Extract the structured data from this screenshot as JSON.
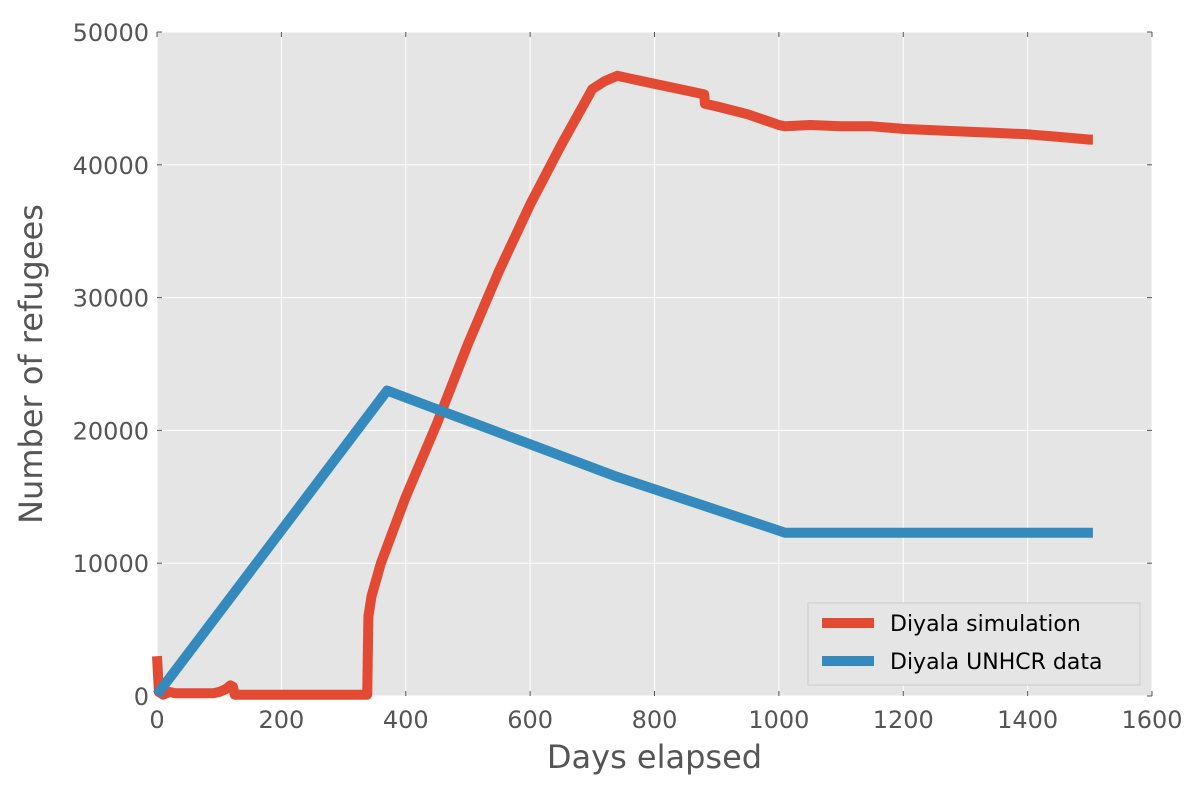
{
  "chart_data": {
    "type": "line",
    "title": "",
    "xlabel": "Days elapsed",
    "ylabel": "Number of refugees",
    "xlim": [
      0,
      1600
    ],
    "ylim": [
      0,
      50000
    ],
    "xticks": [
      0,
      200,
      400,
      600,
      800,
      1000,
      1200,
      1400,
      1600
    ],
    "yticks": [
      0,
      10000,
      20000,
      30000,
      40000,
      50000
    ],
    "grid": true,
    "legend_position": "lower-right",
    "series": [
      {
        "name": "Diyala simulation",
        "color": "#e24a33",
        "x": [
          0,
          3,
          10,
          20,
          30,
          40,
          60,
          90,
          100,
          110,
          118,
          122,
          125,
          200,
          300,
          338,
          340,
          345,
          360,
          380,
          400,
          450,
          500,
          550,
          600,
          650,
          700,
          720,
          740,
          760,
          800,
          850,
          880,
          881,
          900,
          950,
          1000,
          1010,
          1050,
          1100,
          1150,
          1200,
          1250,
          1300,
          1350,
          1400,
          1450,
          1500,
          1505
        ],
        "y": [
          3000,
          300,
          100,
          300,
          200,
          200,
          200,
          200,
          300,
          500,
          800,
          700,
          100,
          100,
          100,
          100,
          6000,
          7500,
          10000,
          12500,
          15000,
          20500,
          26500,
          32000,
          37000,
          41500,
          45700,
          46300,
          46700,
          46500,
          46100,
          45600,
          45300,
          44600,
          44400,
          43800,
          43000,
          42900,
          43000,
          42900,
          42900,
          42700,
          42600,
          42500,
          42400,
          42300,
          42100,
          41900,
          41900
        ]
      },
      {
        "name": "Diyala UNHCR data",
        "color": "#348abd",
        "x": [
          0,
          370,
          740,
          1010,
          1505
        ],
        "y": [
          100,
          23000,
          16500,
          12300,
          12300
        ]
      }
    ]
  }
}
